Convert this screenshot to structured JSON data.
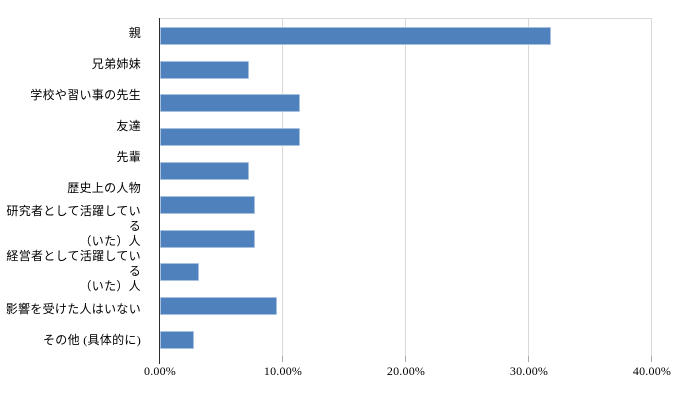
{
  "chart_data": {
    "type": "bar",
    "orientation": "horizontal",
    "title": "",
    "xlabel": "",
    "ylabel": "",
    "categories": [
      "親",
      "兄弟姉妹",
      "学校や習い事の先生",
      "友達",
      "先輩",
      "歴史上の人物",
      "研究者として活躍している\n（いた）人",
      "経営者として活躍している\n（いた）人",
      "影響を受けた人はいない",
      "その他 (具体的に)"
    ],
    "values": [
      31.82,
      7.27,
      11.36,
      11.36,
      7.27,
      7.73,
      7.73,
      3.18,
      9.55,
      2.73
    ],
    "value_unit": "%",
    "xlim": [
      0,
      40
    ],
    "x_tick_labels": [
      "0.00%",
      "10.00%",
      "20.00%",
      "30.00%",
      "40.00%"
    ],
    "grid": true,
    "legend_position": "none",
    "colors": {
      "bar": "#4F81BD",
      "bar_border": "#A7C0DF",
      "gridline": "#D9D9D9",
      "axis": "#2B2B2B",
      "tick": "#ABABAB",
      "text": "#000000",
      "background": "#FFFFFF"
    }
  }
}
